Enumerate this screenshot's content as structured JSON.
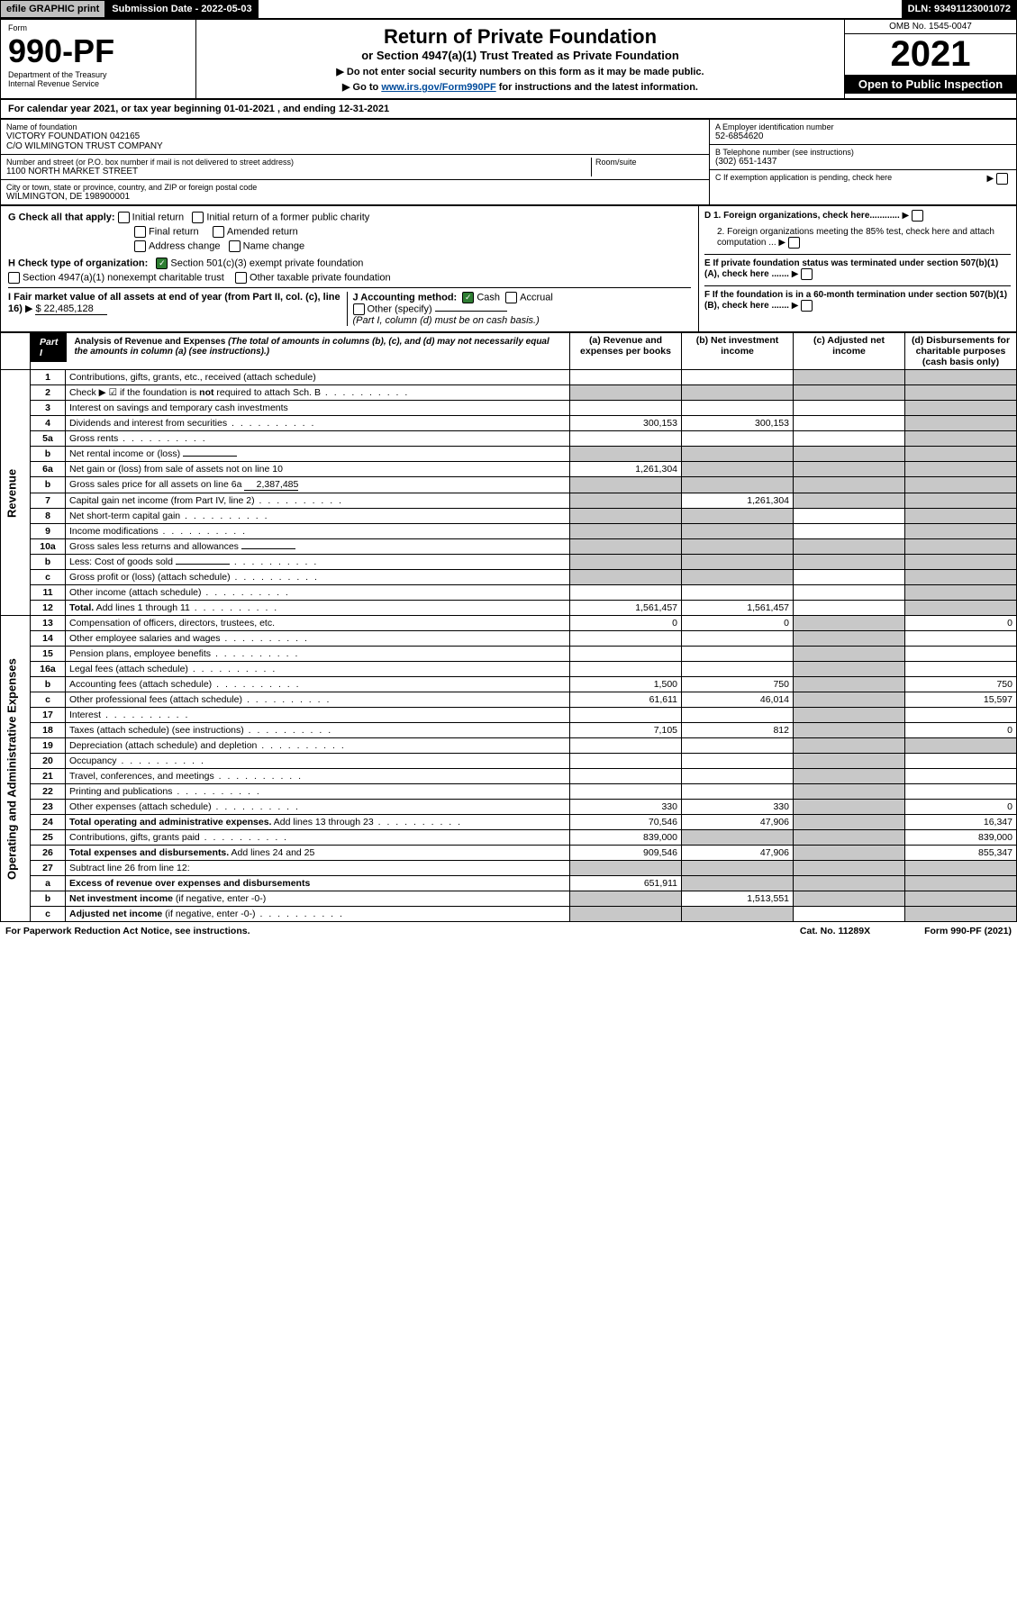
{
  "colors": {
    "black": "#000000",
    "white": "#ffffff",
    "shade": "#c8c8c8",
    "btn_gray": "#c0c0c0",
    "link": "#004b9b",
    "check_green": "#2e7d32"
  },
  "top": {
    "efile": "efile GRAPHIC print",
    "submission": "Submission Date - 2022-05-03",
    "dln": "DLN: 93491123001072"
  },
  "header": {
    "form_label": "Form",
    "form_number": "990-PF",
    "dept": "Department of the Treasury",
    "irs": "Internal Revenue Service",
    "title": "Return of Private Foundation",
    "subtitle": "or Section 4947(a)(1) Trust Treated as Private Foundation",
    "instr1": "▶ Do not enter social security numbers on this form as it may be made public.",
    "instr2_pre": "▶ Go to ",
    "instr2_link": "www.irs.gov/Form990PF",
    "instr2_post": " for instructions and the latest information.",
    "omb": "OMB No. 1545-0047",
    "year": "2021",
    "open": "Open to Public Inspection"
  },
  "cal_year": {
    "prefix": "For calendar year 2021, or tax year beginning ",
    "begin": "01-01-2021",
    "mid": " , and ending ",
    "end": "12-31-2021"
  },
  "ident": {
    "name_label": "Name of foundation",
    "name1": "VICTORY FOUNDATION 042165",
    "name2": "C/O WILMINGTON TRUST COMPANY",
    "addr_label": "Number and street (or P.O. box number if mail is not delivered to street address)",
    "addr": "1100 NORTH MARKET STREET",
    "room_label": "Room/suite",
    "city_label": "City or town, state or province, country, and ZIP or foreign postal code",
    "city": "WILMINGTON, DE  198900001",
    "ein_label": "A Employer identification number",
    "ein": "52-6854620",
    "phone_label": "B Telephone number (see instructions)",
    "phone": "(302) 651-1437",
    "c_label": "C If exemption application is pending, check here"
  },
  "checks": {
    "g_label": "G Check all that apply:",
    "initial": "Initial return",
    "initial_former": "Initial return of a former public charity",
    "final": "Final return",
    "amended": "Amended return",
    "addr_change": "Address change",
    "name_change": "Name change",
    "h_label": "H Check type of organization:",
    "h_501c3": "Section 501(c)(3) exempt private foundation",
    "h_4947": "Section 4947(a)(1) nonexempt charitable trust",
    "h_other": "Other taxable private foundation",
    "i_label": "I Fair market value of all assets at end of year (from Part II, col. (c), line 16)",
    "i_value": "$  22,485,128",
    "j_label": "J Accounting method:",
    "j_cash": "Cash",
    "j_accrual": "Accrual",
    "j_other": "Other (specify)",
    "j_note": "(Part I, column (d) must be on cash basis.)",
    "d1": "D 1. Foreign organizations, check here............",
    "d2": "2. Foreign organizations meeting the 85% test, check here and attach computation ...",
    "e": "E  If private foundation status was terminated under section 507(b)(1)(A), check here .......",
    "f": "F  If the foundation is in a 60-month termination under section 507(b)(1)(B), check here .......",
    "sch_b": "if the foundation is not required to attach Sch. B"
  },
  "part1": {
    "label": "Part I",
    "title": "Analysis of Revenue and Expenses",
    "title_note": "(The total of amounts in columns (b), (c), and (d) may not necessarily equal the amounts in column (a) (see instructions).)",
    "col_a": "(a)  Revenue and expenses per books",
    "col_b": "(b)  Net investment income",
    "col_c": "(c)  Adjusted net income",
    "col_d": "(d)  Disbursements for charitable purposes (cash basis only)"
  },
  "side_labels": {
    "revenue": "Revenue",
    "expenses": "Operating and Administrative Expenses"
  },
  "rows": [
    {
      "n": "1",
      "label": "Contributions, gifts, grants, etc., received (attach schedule)",
      "a": "",
      "b": "",
      "c": "s",
      "d": "s"
    },
    {
      "n": "2",
      "label": "Check ▶ ☑ if the foundation is <b>not</b> required to attach Sch. B",
      "a": "s",
      "b": "s",
      "c": "s",
      "d": "s",
      "dots": true
    },
    {
      "n": "3",
      "label": "Interest on savings and temporary cash investments",
      "a": "",
      "b": "",
      "c": "",
      "d": "s"
    },
    {
      "n": "4",
      "label": "Dividends and interest from securities",
      "a": "300,153",
      "b": "300,153",
      "c": "",
      "d": "s",
      "dots": true
    },
    {
      "n": "5a",
      "label": "Gross rents",
      "a": "",
      "b": "",
      "c": "",
      "d": "s",
      "dots": true
    },
    {
      "n": "b",
      "label": "Net rental income or (loss)",
      "a": "s",
      "b": "s",
      "c": "s",
      "d": "s",
      "inline": ""
    },
    {
      "n": "6a",
      "label": "Net gain or (loss) from sale of assets not on line 10",
      "a": "1,261,304",
      "b": "s",
      "c": "s",
      "d": "s"
    },
    {
      "n": "b",
      "label": "Gross sales price for all assets on line 6a",
      "a": "s",
      "b": "s",
      "c": "s",
      "d": "s",
      "inline": "2,387,485"
    },
    {
      "n": "7",
      "label": "Capital gain net income (from Part IV, line 2)",
      "a": "s",
      "b": "1,261,304",
      "c": "s",
      "d": "s",
      "dots": true
    },
    {
      "n": "8",
      "label": "Net short-term capital gain",
      "a": "s",
      "b": "s",
      "c": "",
      "d": "s",
      "dots": true
    },
    {
      "n": "9",
      "label": "Income modifications",
      "a": "s",
      "b": "s",
      "c": "",
      "d": "s",
      "dots": true
    },
    {
      "n": "10a",
      "label": "Gross sales less returns and allowances",
      "a": "s",
      "b": "s",
      "c": "s",
      "d": "s",
      "inline": ""
    },
    {
      "n": "b",
      "label": "Less: Cost of goods sold",
      "a": "s",
      "b": "s",
      "c": "s",
      "d": "s",
      "inline": "",
      "dots": true
    },
    {
      "n": "c",
      "label": "Gross profit or (loss) (attach schedule)",
      "a": "s",
      "b": "s",
      "c": "",
      "d": "s",
      "dots": true
    },
    {
      "n": "11",
      "label": "Other income (attach schedule)",
      "a": "",
      "b": "",
      "c": "",
      "d": "s",
      "dots": true
    },
    {
      "n": "12",
      "label": "<b>Total.</b> Add lines 1 through 11",
      "a": "1,561,457",
      "b": "1,561,457",
      "c": "",
      "d": "s",
      "dots": true
    },
    {
      "n": "13",
      "label": "Compensation of officers, directors, trustees, etc.",
      "a": "0",
      "b": "0",
      "c": "s",
      "d": "0"
    },
    {
      "n": "14",
      "label": "Other employee salaries and wages",
      "a": "",
      "b": "",
      "c": "s",
      "d": "",
      "dots": true
    },
    {
      "n": "15",
      "label": "Pension plans, employee benefits",
      "a": "",
      "b": "",
      "c": "s",
      "d": "",
      "dots": true
    },
    {
      "n": "16a",
      "label": "Legal fees (attach schedule)",
      "a": "",
      "b": "",
      "c": "s",
      "d": "",
      "dots": true
    },
    {
      "n": "b",
      "label": "Accounting fees (attach schedule)",
      "a": "1,500",
      "b": "750",
      "c": "s",
      "d": "750",
      "dots": true
    },
    {
      "n": "c",
      "label": "Other professional fees (attach schedule)",
      "a": "61,611",
      "b": "46,014",
      "c": "s",
      "d": "15,597",
      "dots": true
    },
    {
      "n": "17",
      "label": "Interest",
      "a": "",
      "b": "",
      "c": "s",
      "d": "",
      "dots": true
    },
    {
      "n": "18",
      "label": "Taxes (attach schedule) (see instructions)",
      "a": "7,105",
      "b": "812",
      "c": "s",
      "d": "0",
      "dots": true
    },
    {
      "n": "19",
      "label": "Depreciation (attach schedule) and depletion",
      "a": "",
      "b": "",
      "c": "s",
      "d": "s",
      "dots": true
    },
    {
      "n": "20",
      "label": "Occupancy",
      "a": "",
      "b": "",
      "c": "s",
      "d": "",
      "dots": true
    },
    {
      "n": "21",
      "label": "Travel, conferences, and meetings",
      "a": "",
      "b": "",
      "c": "s",
      "d": "",
      "dots": true
    },
    {
      "n": "22",
      "label": "Printing and publications",
      "a": "",
      "b": "",
      "c": "s",
      "d": "",
      "dots": true
    },
    {
      "n": "23",
      "label": "Other expenses (attach schedule)",
      "a": "330",
      "b": "330",
      "c": "s",
      "d": "0",
      "dots": true
    },
    {
      "n": "24",
      "label": "<b>Total operating and administrative expenses.</b> Add lines 13 through 23",
      "a": "70,546",
      "b": "47,906",
      "c": "s",
      "d": "16,347",
      "dots": true
    },
    {
      "n": "25",
      "label": "Contributions, gifts, grants paid",
      "a": "839,000",
      "b": "s",
      "c": "s",
      "d": "839,000",
      "dots": true
    },
    {
      "n": "26",
      "label": "<b>Total expenses and disbursements.</b> Add lines 24 and 25",
      "a": "909,546",
      "b": "47,906",
      "c": "s",
      "d": "855,347"
    },
    {
      "n": "27",
      "label": "Subtract line 26 from line 12:",
      "a": "s",
      "b": "s",
      "c": "s",
      "d": "s"
    },
    {
      "n": "a",
      "label": "<b>Excess of revenue over expenses and disbursements</b>",
      "a": "651,911",
      "b": "s",
      "c": "s",
      "d": "s"
    },
    {
      "n": "b",
      "label": "<b>Net investment income</b> (if negative, enter -0-)",
      "a": "s",
      "b": "1,513,551",
      "c": "s",
      "d": "s"
    },
    {
      "n": "c",
      "label": "<b>Adjusted net income</b> (if negative, enter -0-)",
      "a": "s",
      "b": "s",
      "c": "",
      "d": "s",
      "dots": true
    }
  ],
  "footer": {
    "left": "For Paperwork Reduction Act Notice, see instructions.",
    "mid": "Cat. No. 11289X",
    "right": "Form 990-PF (2021)"
  }
}
